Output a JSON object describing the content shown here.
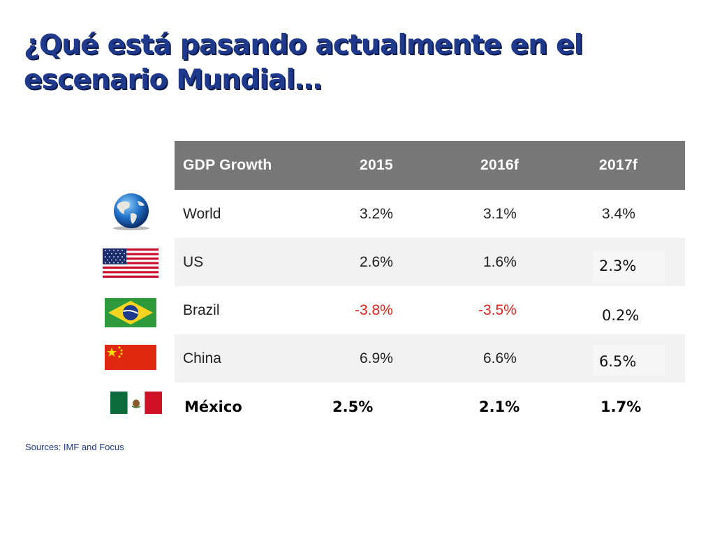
{
  "slide": {
    "title": "¿Qué está pasando actualmente en el escenario Mundial…"
  },
  "table": {
    "headers": [
      "GDP Growth",
      "2015",
      "2016f",
      "2017f"
    ],
    "rows": [
      {
        "country": "World",
        "icon": "globe-icon",
        "v2015": "3.2%",
        "v2016": "3.1%",
        "v2017": "3.4%"
      },
      {
        "country": "US",
        "icon": "us-flag-icon",
        "v2015": "2.6%",
        "v2016": "1.6%",
        "v2017": "2.3%"
      },
      {
        "country": "Brazil",
        "icon": "brazil-flag-icon",
        "v2015": "-3.8%",
        "v2016": "-3.5%",
        "v2017": "0.2%"
      },
      {
        "country": "China",
        "icon": "china-flag-icon",
        "v2015": "6.9%",
        "v2016": "6.6%",
        "v2017": "6.5%"
      },
      {
        "country": "México",
        "icon": "mexico-flag-icon",
        "v2015": "2.5%",
        "v2016": "2.1%",
        "v2017": "1.7%"
      }
    ],
    "negative_color": "#e2231a",
    "header_color": "#777777"
  },
  "sources": "Sources: IMF and Focus",
  "colors": {
    "title": "#1f3a8c"
  }
}
